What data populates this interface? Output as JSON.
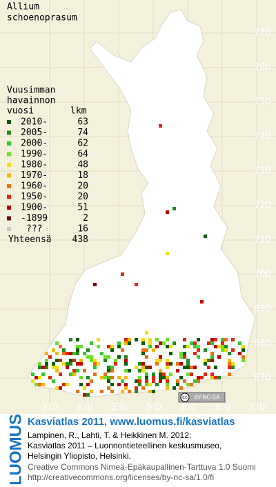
{
  "map": {
    "title": [
      "Allium",
      "schoenoprasum"
    ],
    "legend": {
      "header": [
        "Vuusimman",
        "havainnon",
        "vuosi"
      ],
      "count_header": "lkm",
      "rows": [
        {
          "label": "2010-",
          "count": 63,
          "color": "#0a5c0a"
        },
        {
          "label": "2005-",
          "count": 74,
          "color": "#1e8c1e"
        },
        {
          "label": "2000-",
          "count": 62,
          "color": "#2ecc2e"
        },
        {
          "label": "1990-",
          "count": 64,
          "color": "#6de02a"
        },
        {
          "label": "1980-",
          "count": 48,
          "color": "#f0e000"
        },
        {
          "label": "1970-",
          "count": 18,
          "color": "#f5b800"
        },
        {
          "label": "1960-",
          "count": 20,
          "color": "#f07010"
        },
        {
          "label": "1950-",
          "count": 20,
          "color": "#e02810"
        },
        {
          "label": "1900-",
          "count": 51,
          "color": "#c00000"
        },
        {
          "label": "-1899",
          "count": 2,
          "color": "#800000"
        },
        {
          "label": "???",
          "count": 16,
          "color": "#c8c8c8"
        }
      ],
      "total_label": "Yhteensä",
      "total": 438
    },
    "grid": {
      "y_labels": [
        770,
        760,
        750,
        740,
        730,
        720,
        710,
        700,
        690,
        680,
        670
      ],
      "x_labels": [
        310,
        320,
        330,
        340,
        350,
        360,
        370
      ]
    },
    "badge": {
      "cc": "cc",
      "license": "BY-NC-SA"
    }
  },
  "footer": {
    "brand": "LUOMUS",
    "heading": "Kasviatlas 2011, www.luomus.fi/kasviatlas",
    "citation": [
      "Lampinen, R., Lahti, T. & Heikkinen M. 2012:",
      "Kasviatlas 2011 – Luonnontieteellinen keskusmuseo,",
      "Helsingin Yliopisto, Helsinki."
    ],
    "license": [
      "Creative Commons Nimeä-Epäkaupallinen-Tarttuva 1.0 Suomi",
      "http://creativecommons.org/licenses/by-nc-sa/1.0/fi"
    ]
  }
}
